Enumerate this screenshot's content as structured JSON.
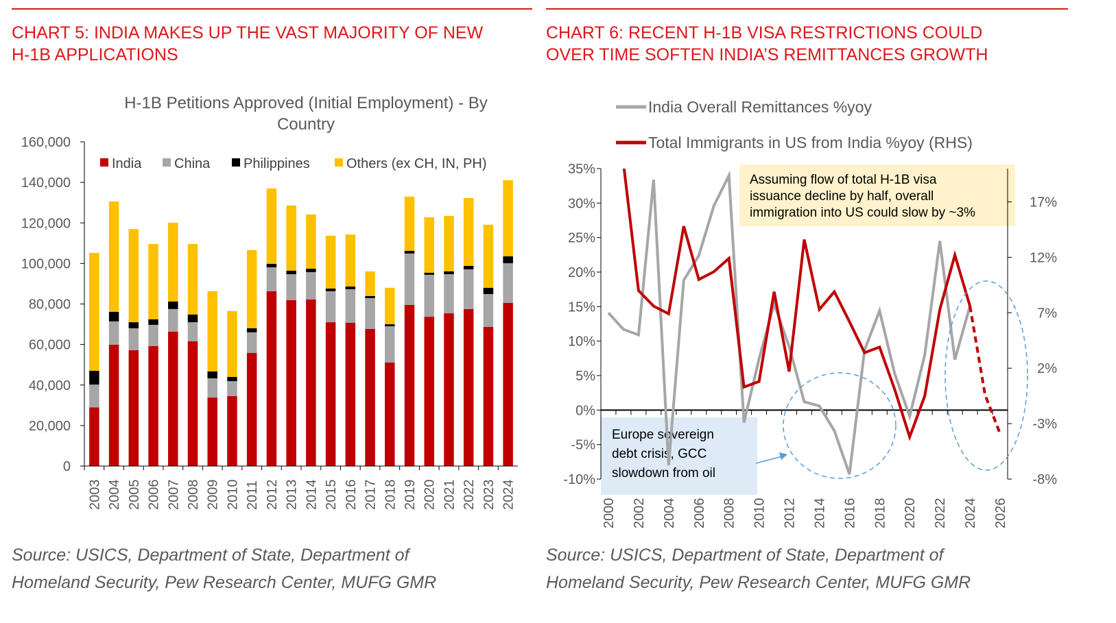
{
  "colors": {
    "title": "#e0161b",
    "india": "#c00000",
    "china": "#a6a6a6",
    "philippines": "#000000",
    "others": "#ffc000",
    "remit": "#a6a6a6",
    "immig": "#c00000",
    "annot_yellow": "#fff2cc",
    "annot_blue": "#deebf7",
    "circle": "#5b9bd5"
  },
  "left": {
    "heading": [
      "CHART 5: INDIA MAKES UP THE VAST MAJORITY OF NEW",
      "H-1B APPLICATIONS"
    ],
    "source": [
      "Source: USICS, Department of State, Department of",
      "Homeland Security, Pew Research Center, MUFG GMR"
    ]
  },
  "right": {
    "heading": [
      "CHART 6: RECENT H-1B VISA RESTRICTIONS COULD",
      "OVER TIME SOFTEN INDIA’S REMITTANCES GROWTH"
    ],
    "source": [
      "Source: USICS, Department of State, Department of",
      "Homeland Security, Pew Research Center, MUFG GMR"
    ]
  },
  "chart_data": [
    {
      "type": "bar",
      "stacked": true,
      "title": [
        "H-1B Petitions Approved (Initial Employment) - By",
        "Country"
      ],
      "categories": [
        "2003",
        "2004",
        "2005",
        "2006",
        "2007",
        "2008",
        "2009",
        "2010",
        "2011",
        "2012",
        "2013",
        "2014",
        "2015",
        "2016",
        "2017",
        "2018",
        "2019",
        "2020",
        "2021",
        "2022",
        "2023",
        "2024"
      ],
      "ylim": [
        0,
        160000
      ],
      "yticks": [
        "0",
        "20,000",
        "40,000",
        "60,000",
        "80,000",
        "100,000",
        "120,000",
        "140,000",
        "160,000"
      ],
      "legend_position": "top",
      "grid": false,
      "series": [
        {
          "name": "India",
          "values": [
            29000,
            59900,
            57200,
            59200,
            66300,
            61600,
            33800,
            34500,
            55800,
            86300,
            81900,
            82200,
            71000,
            70700,
            67700,
            51100,
            79500,
            73700,
            75400,
            77500,
            68700,
            80500
          ]
        },
        {
          "name": "China",
          "values": [
            11200,
            11500,
            10800,
            10500,
            11200,
            9400,
            9500,
            7400,
            10200,
            11800,
            12800,
            13500,
            15300,
            16600,
            15200,
            17900,
            25400,
            20700,
            19300,
            19600,
            16200,
            19600
          ]
        },
        {
          "name": "Philippines",
          "values": [
            6800,
            4700,
            3000,
            2700,
            3700,
            3800,
            3400,
            2100,
            2000,
            1700,
            1700,
            1700,
            1300,
            1300,
            1000,
            1000,
            1300,
            1000,
            1400,
            1700,
            3100,
            3400
          ]
        },
        {
          "name": "Others (ex CH, IN, PH)",
          "values": [
            58200,
            54500,
            46000,
            37200,
            38900,
            34800,
            39600,
            32500,
            38600,
            37200,
            32200,
            26800,
            26100,
            25700,
            12200,
            18000,
            26800,
            27400,
            27400,
            33500,
            31100,
            37600
          ]
        }
      ]
    },
    {
      "type": "line",
      "x": [
        "2000",
        "2001",
        "2002",
        "2003",
        "2004",
        "2005",
        "2006",
        "2007",
        "2008",
        "2009",
        "2010",
        "2011",
        "2012",
        "2013",
        "2014",
        "2015",
        "2016",
        "2017",
        "2018",
        "2019",
        "2020",
        "2021",
        "2022",
        "2023",
        "2024",
        "2025",
        "2026"
      ],
      "xticks": [
        "2000",
        "2002",
        "2004",
        "2006",
        "2008",
        "2010",
        "2012",
        "2014",
        "2016",
        "2018",
        "2020",
        "2022",
        "2024",
        "2026"
      ],
      "ylim_left": [
        -10,
        35
      ],
      "yticks_left": [
        "-10%",
        "-5%",
        "0%",
        "5%",
        "10%",
        "15%",
        "20%",
        "25%",
        "30%",
        "35%"
      ],
      "ylim_right": [
        -8,
        20
      ],
      "yticks_right": [
        "-8%",
        "-3%",
        "2%",
        "7%",
        "12%",
        "17%"
      ],
      "legend_position": "top-left",
      "series": [
        {
          "name": "India Overall Remittances %yoy",
          "axis": "left",
          "values": [
            14.1,
            11.7,
            10.9,
            33.4,
            -8.0,
            18.8,
            22.4,
            29.6,
            34.0,
            -1.8,
            7.4,
            15.4,
            9.2,
            1.2,
            0.6,
            -3.0,
            -9.3,
            8.7,
            14.4,
            5.3,
            -0.9,
            8.0,
            24.5,
            7.3,
            15.1,
            null,
            null
          ]
        },
        {
          "name": "Total Immigrants in US from India %yoy (RHS)",
          "axis": "right",
          "values": [
            null,
            20.5,
            9.0,
            7.6,
            6.9,
            14.8,
            10.0,
            10.7,
            11.9,
            0.3,
            0.8,
            8.9,
            1.7,
            13.6,
            7.3,
            8.9,
            6.2,
            3.4,
            3.9,
            0.1,
            -4.2,
            -0.5,
            7.3,
            12.2,
            7.6,
            -0.4,
            -3.9
          ],
          "projected_from": "2024"
        }
      ],
      "annotations": [
        {
          "text": [
            "Assuming flow of total H-1B visa",
            "issuance decline by half, overall",
            "immigration into US could slow by ~3%"
          ]
        },
        {
          "text": [
            "Europe sovereign",
            "debt crisis, GCC",
            "slowdown from oil"
          ]
        }
      ]
    }
  ]
}
